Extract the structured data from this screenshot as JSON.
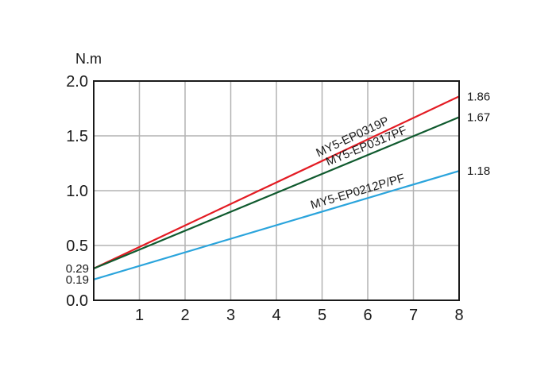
{
  "chart_data": {
    "type": "line",
    "title": "",
    "xlabel": "",
    "ylabel": "N.m",
    "xlim": [
      0,
      8
    ],
    "ylim": [
      0,
      2.0
    ],
    "x_ticks": [
      1,
      2,
      3,
      4,
      5,
      6,
      7,
      8
    ],
    "y_ticks": [
      "0.0",
      "0.5",
      "1.0",
      "1.5",
      "2.0"
    ],
    "grid": true,
    "series": [
      {
        "name": "MY5-EP0319P",
        "color": "#e31b23",
        "x": [
          0,
          8
        ],
        "y": [
          0.29,
          1.86
        ],
        "start_label": "0.29",
        "end_label": "1.86"
      },
      {
        "name": "MY5-EP0317PF",
        "color": "#0f5a2e",
        "x": [
          0,
          8
        ],
        "y": [
          0.29,
          1.67
        ],
        "start_label": "",
        "end_label": "1.67"
      },
      {
        "name": "MY5-EP0212P/PF",
        "color": "#2aa4dc",
        "x": [
          0,
          8
        ],
        "y": [
          0.19,
          1.18
        ],
        "start_label": "0.19",
        "end_label": "1.18"
      }
    ]
  }
}
